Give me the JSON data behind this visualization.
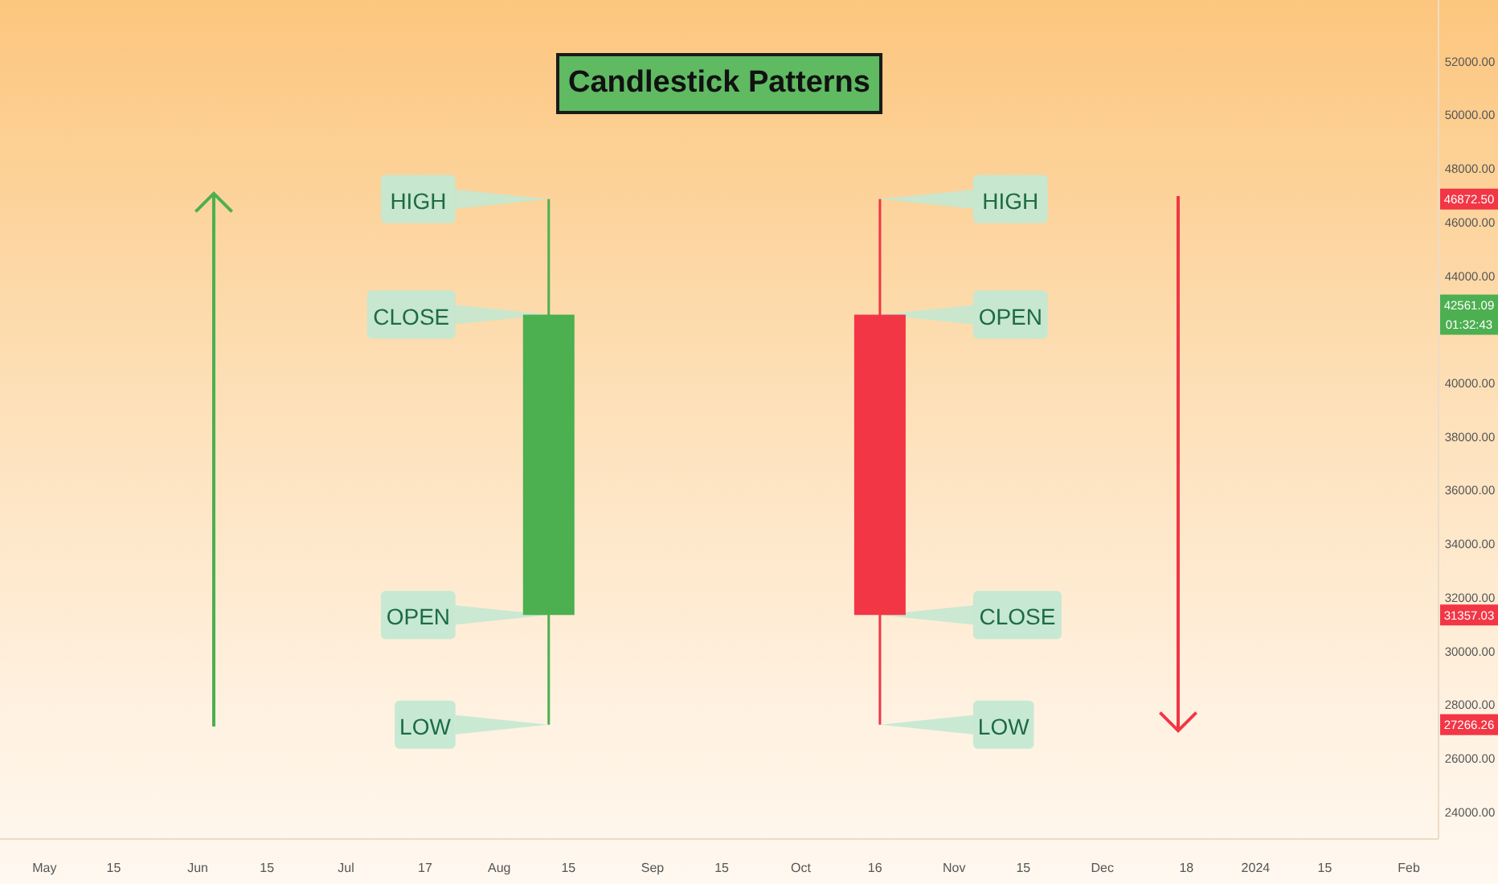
{
  "chart_data": {
    "type": "candlestick",
    "title": "Candlestick Patterns",
    "x": [
      "2023-08-11",
      "2023-10-17"
    ],
    "ohlc": [
      [
        31357.03,
        46872.5,
        27266.26,
        42561.09
      ],
      [
        42561.09,
        46872.5,
        27266.26,
        31357.03
      ]
    ],
    "colors": [
      "#4caf50",
      "#f23645"
    ],
    "xlim": [
      "2023-04-22",
      "2024-02-07"
    ],
    "xticks": [
      {
        "value": "2023-05-01",
        "label": "May"
      },
      {
        "value": "2023-05-15",
        "label": "15"
      },
      {
        "value": "2023-06-01",
        "label": "Jun"
      },
      {
        "value": "2023-06-15",
        "label": "15"
      },
      {
        "value": "2023-07-01",
        "label": "Jul"
      },
      {
        "value": "2023-07-17",
        "label": "17"
      },
      {
        "value": "2023-08-01",
        "label": "Aug"
      },
      {
        "value": "2023-08-15",
        "label": "15"
      },
      {
        "value": "2023-09-01",
        "label": "Sep"
      },
      {
        "value": "2023-09-15",
        "label": "15"
      },
      {
        "value": "2023-10-01",
        "label": "Oct"
      },
      {
        "value": "2023-10-16",
        "label": "16"
      },
      {
        "value": "2023-11-01",
        "label": "Nov"
      },
      {
        "value": "2023-11-15",
        "label": "15"
      },
      {
        "value": "2023-12-01",
        "label": "Dec"
      },
      {
        "value": "2023-12-18",
        "label": "18"
      },
      {
        "value": "2024-01-01",
        "label": "2024"
      },
      {
        "value": "2024-01-15",
        "label": "15"
      },
      {
        "value": "2024-02-01",
        "label": "Feb"
      }
    ],
    "ylim": [
      23000,
      54300
    ],
    "yticks": [
      {
        "value": 24000,
        "label": "24000.00"
      },
      {
        "value": 26000,
        "label": "26000.00"
      },
      {
        "value": 28000,
        "label": "28000.00"
      },
      {
        "value": 30000,
        "label": "30000.00"
      },
      {
        "value": 32000,
        "label": "32000.00"
      },
      {
        "value": 34000,
        "label": "34000.00"
      },
      {
        "value": 36000,
        "label": "36000.00"
      },
      {
        "value": 38000,
        "label": "38000.00"
      },
      {
        "value": 40000,
        "label": "40000.00"
      },
      {
        "value": 44000,
        "label": "44000.00"
      },
      {
        "value": 46000,
        "label": "46000.00"
      },
      {
        "value": 48000,
        "label": "48000.00"
      },
      {
        "value": 50000,
        "label": "50000.00"
      },
      {
        "value": 52000,
        "label": "52000.00"
      }
    ],
    "annotations": [
      {
        "text": "HIGH",
        "x": "2023-08-11",
        "y": 46872.5
      },
      {
        "text": "CLOSE",
        "x": "2023-08-11",
        "y": 42561.09
      },
      {
        "text": "OPEN",
        "x": "2023-08-11",
        "y": 31357.03
      },
      {
        "text": "LOW",
        "x": "2023-08-11",
        "y": 27266.26
      },
      {
        "text": "HIGH",
        "x": "2023-10-17",
        "y": 46872.5
      },
      {
        "text": "OPEN",
        "x": "2023-10-17",
        "y": 42561.09
      },
      {
        "text": "CLOSE",
        "x": "2023-10-17",
        "y": 31357.03
      },
      {
        "text": "LOW",
        "x": "2023-10-17",
        "y": 27266.26
      },
      {
        "text": "46872.50",
        "y": 46872.5
      },
      {
        "text": "42561.09\n01:32:43",
        "y": 42561.09
      },
      {
        "text": "31357.03",
        "y": 31357.03
      },
      {
        "text": "27266.26",
        "y": 27266.26
      }
    ]
  }
}
